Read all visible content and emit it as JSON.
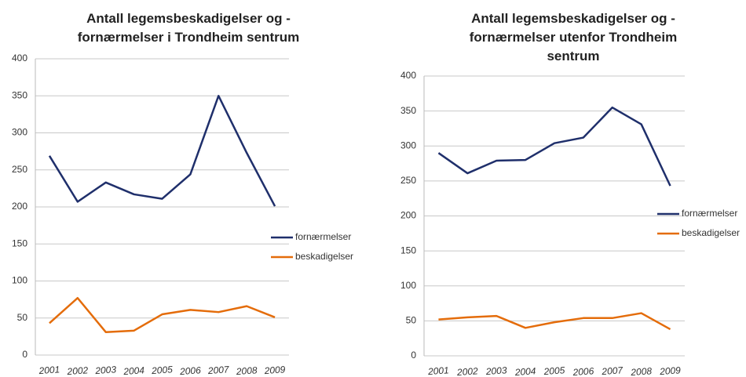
{
  "chart_data": [
    {
      "type": "line",
      "title": "Antall legemsbeskadigelser og -fornærmelser i Trondheim sentrum",
      "categories": [
        "2001",
        "2002",
        "2003",
        "2004",
        "2005",
        "2006",
        "2007",
        "2008",
        "2009"
      ],
      "series": [
        {
          "name": "fornærmelser",
          "color": "#1f2f6b",
          "values": [
            269,
            207,
            233,
            217,
            211,
            244,
            350,
            273,
            201
          ]
        },
        {
          "name": "beskadigelser",
          "color": "#e46c0a",
          "values": [
            43,
            77,
            31,
            33,
            55,
            61,
            58,
            66,
            51
          ]
        }
      ],
      "ylim": [
        0,
        400
      ],
      "yticks": [
        0,
        50,
        100,
        150,
        200,
        250,
        300,
        350,
        400
      ],
      "grid": true,
      "legend": "right"
    },
    {
      "type": "line",
      "title": "Antall legemsbeskadigelser og -fornærmelser utenfor Trondheim sentrum",
      "categories": [
        "2001",
        "2002",
        "2003",
        "2004",
        "2005",
        "2006",
        "2007",
        "2008",
        "2009"
      ],
      "series": [
        {
          "name": "fornærmelser",
          "color": "#1f2f6b",
          "values": [
            290,
            261,
            279,
            280,
            304,
            312,
            355,
            331,
            243
          ]
        },
        {
          "name": "beskadigelser",
          "color": "#e46c0a",
          "values": [
            52,
            55,
            57,
            40,
            48,
            54,
            54,
            61,
            38
          ]
        }
      ],
      "ylim": [
        0,
        400
      ],
      "yticks": [
        0,
        50,
        100,
        150,
        200,
        250,
        300,
        350,
        400
      ],
      "grid": true,
      "legend": "right"
    }
  ]
}
